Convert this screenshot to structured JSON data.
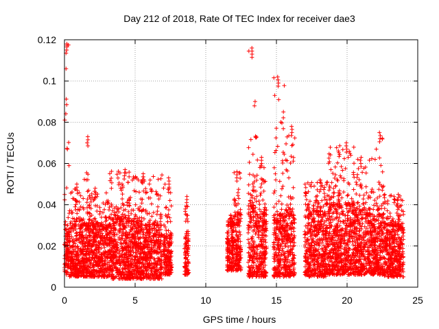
{
  "chart_data": {
    "type": "scatter",
    "title": "Day 212 of 2018, Rate Of TEC Index for receiver dae3",
    "xlabel": "GPS time / hours",
    "ylabel": "ROTI / TECUs",
    "xlim": [
      0,
      25
    ],
    "ylim": [
      0,
      0.12
    ],
    "xticks": [
      0,
      5,
      10,
      15,
      20,
      25
    ],
    "xtick_labels": [
      "0",
      "5",
      "10",
      "15",
      "20",
      "25"
    ],
    "yticks": [
      0,
      0.02,
      0.04,
      0.06,
      0.08,
      0.1,
      0.12
    ],
    "ytick_labels": [
      "0",
      "0.02",
      "0.04",
      "0.06",
      "0.08",
      "0.1",
      "0.12"
    ],
    "grid": true,
    "marker": "+",
    "series_color": "#ff0000",
    "point_clusters": [
      {
        "x_range": [
          0.0,
          0.35
        ],
        "y_typical": [
          0.006,
          0.03
        ],
        "y_max": 0.118
      },
      {
        "x_range": [
          0.35,
          1.4
        ],
        "y_typical": [
          0.005,
          0.03
        ],
        "y_max": 0.05
      },
      {
        "x_range": [
          1.4,
          1.7
        ],
        "y_typical": [
          0.005,
          0.03
        ],
        "y_max": 0.073
      },
      {
        "x_range": [
          1.7,
          3.2
        ],
        "y_typical": [
          0.005,
          0.03
        ],
        "y_max": 0.048
      },
      {
        "x_range": [
          3.2,
          4.7
        ],
        "y_typical": [
          0.004,
          0.033
        ],
        "y_max": 0.057
      },
      {
        "x_range": [
          4.7,
          6.9
        ],
        "y_typical": [
          0.004,
          0.03
        ],
        "y_max": 0.055
      },
      {
        "x_range": [
          7.0,
          7.6
        ],
        "y_typical": [
          0.006,
          0.025
        ],
        "y_max": 0.053
      },
      {
        "x_range": [
          8.5,
          8.8
        ],
        "y_typical": [
          0.006,
          0.025
        ],
        "y_max": 0.044
      },
      {
        "x_range": [
          11.5,
          12.0
        ],
        "y_typical": [
          0.008,
          0.03
        ],
        "y_max": 0.035
      },
      {
        "x_range": [
          12.0,
          12.5
        ],
        "y_typical": [
          0.008,
          0.035
        ],
        "y_max": 0.056
      },
      {
        "x_range": [
          13.0,
          13.6
        ],
        "y_typical": [
          0.005,
          0.04
        ],
        "y_max": 0.116
      },
      {
        "x_range": [
          13.6,
          14.3
        ],
        "y_typical": [
          0.005,
          0.035
        ],
        "y_max": 0.063
      },
      {
        "x_range": [
          14.8,
          15.6
        ],
        "y_typical": [
          0.005,
          0.035
        ],
        "y_max": 0.102
      },
      {
        "x_range": [
          15.6,
          16.3
        ],
        "y_typical": [
          0.005,
          0.035
        ],
        "y_max": 0.078
      },
      {
        "x_range": [
          17.0,
          18.5
        ],
        "y_typical": [
          0.005,
          0.035
        ],
        "y_max": 0.052
      },
      {
        "x_range": [
          18.5,
          20.5
        ],
        "y_typical": [
          0.006,
          0.04
        ],
        "y_max": 0.07
      },
      {
        "x_range": [
          20.5,
          22.0
        ],
        "y_typical": [
          0.006,
          0.035
        ],
        "y_max": 0.063
      },
      {
        "x_range": [
          22.0,
          22.6
        ],
        "y_typical": [
          0.006,
          0.035
        ],
        "y_max": 0.075
      },
      {
        "x_range": [
          22.6,
          24.0
        ],
        "y_typical": [
          0.005,
          0.03
        ],
        "y_max": 0.045
      }
    ]
  }
}
